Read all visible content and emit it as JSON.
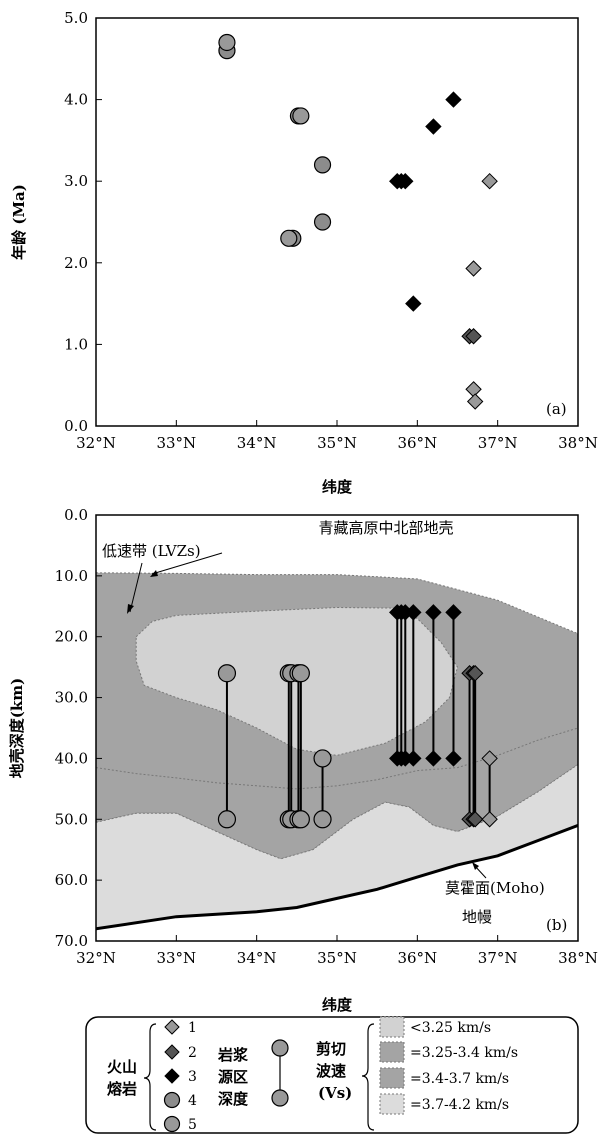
{
  "colors": {
    "type1": "#999999",
    "type2": "#555555",
    "type3": "#000000",
    "type4": "#8c8c8c",
    "type5": "#999999",
    "vs1": "#d2d2d2",
    "vs2": "#a4a4a4",
    "vs3": "#a4a4a4",
    "vs4": "#dcdcdc",
    "lvz": "#d2d2d2",
    "crust_mid": "#a4a4a4",
    "lower": "#dcdcdc",
    "mantle": "#ffffff"
  },
  "chart_data": [
    {
      "type": "scatter",
      "panel_label": "(a)",
      "xlabel": "纬度",
      "ylabel": "年龄 (Ma)",
      "xlim": [
        32,
        38
      ],
      "ylim": [
        0,
        5
      ],
      "x_tick_labels": [
        "32°N",
        "33°N",
        "34°N",
        "35°N",
        "36°N",
        "37°N",
        "38°N"
      ],
      "y_tick_labels": [
        "0.0",
        "1.0",
        "2.0",
        "3.0",
        "4.0",
        "5.0"
      ],
      "series": [
        {
          "name": "1",
          "marker": "diamond",
          "points": [
            [
              36.9,
              3.0
            ],
            [
              36.7,
              1.93
            ],
            [
              36.7,
              0.45
            ],
            [
              36.72,
              0.3
            ]
          ]
        },
        {
          "name": "2",
          "marker": "diamond",
          "points": [
            [
              36.65,
              1.1
            ],
            [
              36.7,
              1.1
            ]
          ]
        },
        {
          "name": "3",
          "marker": "diamond",
          "points": [
            [
              36.45,
              4.0
            ],
            [
              36.2,
              3.67
            ],
            [
              35.75,
              3.0
            ],
            [
              35.85,
              3.0
            ],
            [
              35.8,
              3.0
            ],
            [
              35.95,
              1.5
            ]
          ]
        },
        {
          "name": "4",
          "marker": "circle",
          "points": [
            [
              33.63,
              4.6
            ],
            [
              34.52,
              3.8
            ],
            [
              34.82,
              3.2
            ],
            [
              34.82,
              2.5
            ],
            [
              34.45,
              2.3
            ]
          ]
        },
        {
          "name": "5",
          "marker": "circle",
          "points": [
            [
              33.63,
              4.7
            ],
            [
              34.55,
              3.8
            ],
            [
              34.4,
              2.3
            ]
          ]
        }
      ]
    },
    {
      "type": "area",
      "panel_label": "(b)",
      "title": "青藏高原中北部地壳",
      "xlabel": "纬度",
      "ylabel": "地壳深度(km)",
      "xlim": [
        32,
        38
      ],
      "ylim": [
        70,
        0
      ],
      "x_tick_labels": [
        "32°N",
        "33°N",
        "34°N",
        "35°N",
        "36°N",
        "37°N",
        "38°N"
      ],
      "y_tick_labels": [
        "0.0",
        "10.0",
        "20.0",
        "30.0",
        "40.0",
        "50.0",
        "60.0",
        "70.0"
      ],
      "annotations": {
        "lvz": "低速带 (LVZs)",
        "moho": "莫霍面(Moho)",
        "mantle": "地幔"
      },
      "source_depth_ranges": [
        {
          "x": 33.63,
          "top": 26,
          "bottom": 50,
          "marker": "circle"
        },
        {
          "x": 34.4,
          "top": 26,
          "bottom": 50,
          "marker": "circle"
        },
        {
          "x": 34.43,
          "top": 26,
          "bottom": 50,
          "marker": "circle"
        },
        {
          "x": 34.52,
          "top": 26,
          "bottom": 50,
          "marker": "circle"
        },
        {
          "x": 34.55,
          "top": 26,
          "bottom": 50,
          "marker": "circle"
        },
        {
          "x": 34.82,
          "top": 40,
          "bottom": 50,
          "marker": "circle"
        },
        {
          "x": 35.75,
          "top": 16,
          "bottom": 40,
          "marker": "diamond"
        },
        {
          "x": 35.8,
          "top": 16,
          "bottom": 40,
          "marker": "diamond"
        },
        {
          "x": 35.85,
          "top": 16,
          "bottom": 40,
          "marker": "diamond"
        },
        {
          "x": 35.95,
          "top": 16,
          "bottom": 40,
          "marker": "diamond"
        },
        {
          "x": 36.2,
          "top": 16,
          "bottom": 40,
          "marker": "diamond"
        },
        {
          "x": 36.45,
          "top": 16,
          "bottom": 40,
          "marker": "diamond"
        },
        {
          "x": 36.65,
          "top": 26,
          "bottom": 50,
          "marker": "diamond"
        },
        {
          "x": 36.7,
          "top": 26,
          "bottom": 50,
          "marker": "diamond"
        },
        {
          "x": 36.72,
          "top": 26,
          "bottom": 50,
          "marker": "diamond"
        },
        {
          "x": 36.9,
          "top": 40,
          "bottom": 50,
          "marker": "diamond"
        }
      ],
      "layers": {
        "top_boundary": [
          [
            32,
            9.5
          ],
          [
            33,
            9.6
          ],
          [
            34,
            9.8
          ],
          [
            35,
            9.8
          ],
          [
            36,
            10.5
          ],
          [
            37,
            14
          ],
          [
            38,
            19.5
          ]
        ],
        "lvz_boundary": [
          [
            32.5,
            20
          ],
          [
            32.7,
            17.5
          ],
          [
            33,
            16.5
          ],
          [
            34,
            15.8
          ],
          [
            35,
            15.2
          ],
          [
            35.7,
            15.3
          ],
          [
            36,
            17
          ],
          [
            36.3,
            21
          ],
          [
            36.5,
            25
          ],
          [
            36.4,
            30
          ],
          [
            36.1,
            34
          ],
          [
            35.6,
            37.5
          ],
          [
            35,
            39.5
          ],
          [
            34.5,
            38.5
          ],
          [
            34,
            35
          ],
          [
            33.5,
            32
          ],
          [
            33,
            30
          ],
          [
            32.6,
            28
          ],
          [
            32.5,
            24
          ],
          [
            32.5,
            20
          ]
        ],
        "mid_lower_boundary": [
          [
            32,
            41.5
          ],
          [
            32.5,
            42.5
          ],
          [
            33,
            43.2
          ],
          [
            33.5,
            44
          ],
          [
            34,
            44.5
          ],
          [
            34.5,
            45
          ],
          [
            35,
            44.5
          ],
          [
            35.5,
            43.5
          ],
          [
            36,
            42
          ],
          [
            36.5,
            41.5
          ],
          [
            37,
            39.5
          ],
          [
            37.5,
            37
          ],
          [
            38,
            35
          ]
        ],
        "lower_top_boundary": [
          [
            32,
            50.5
          ],
          [
            32.5,
            49
          ],
          [
            33,
            49
          ],
          [
            33.5,
            52
          ],
          [
            34,
            55
          ],
          [
            34.3,
            56.5
          ],
          [
            34.7,
            55
          ],
          [
            35.2,
            50
          ],
          [
            35.6,
            47.2
          ],
          [
            35.9,
            48
          ],
          [
            36.2,
            51
          ],
          [
            36.5,
            52
          ],
          [
            37,
            49.5
          ],
          [
            37.5,
            45.5
          ],
          [
            38,
            41
          ]
        ],
        "moho": [
          [
            32,
            68
          ],
          [
            33,
            66
          ],
          [
            34,
            65.2
          ],
          [
            34.5,
            64.5
          ],
          [
            35,
            63
          ],
          [
            35.5,
            61.5
          ],
          [
            36,
            59.5
          ],
          [
            36.5,
            57.5
          ],
          [
            37,
            56
          ],
          [
            37.5,
            53.5
          ],
          [
            38,
            51
          ]
        ]
      }
    }
  ],
  "legend": {
    "group_volcanic": "火山熔岩",
    "items": [
      "1",
      "2",
      "3",
      "4",
      "5"
    ],
    "group_source": "岩浆源区深度",
    "group_vs": "剪切波速(Vs)",
    "vs_items": [
      "<3.25 km/s",
      "=3.25-3.4 km/s",
      "=3.4-3.7 km/s",
      "=3.7-4.2 km/s"
    ]
  }
}
